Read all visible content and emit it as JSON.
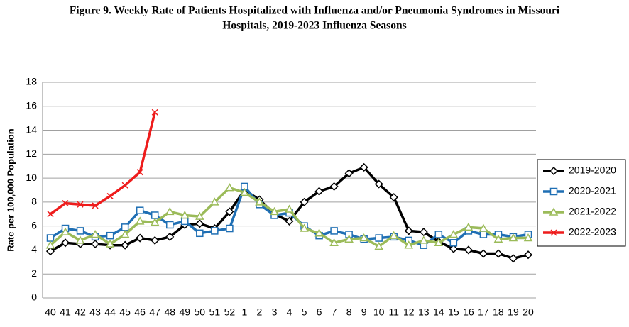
{
  "chart_data": {
    "type": "line",
    "title": [
      "Figure 9.  Weekly Rate of Patients Hospitalized with Influenza and/or Pneumonia Syndromes in Missouri",
      "Hospitals, 2019-2023 Influenza Seasons"
    ],
    "y_label": "Rate per 100,000 Population",
    "categories": [
      "40",
      "41",
      "42",
      "43",
      "44",
      "45",
      "46",
      "47",
      "48",
      "49",
      "50",
      "51",
      "52",
      "1",
      "2",
      "3",
      "4",
      "5",
      "6",
      "7",
      "8",
      "9",
      "10",
      "11",
      "12",
      "13",
      "14",
      "15",
      "16",
      "17",
      "18",
      "19",
      "20"
    ],
    "ylim": [
      0,
      18
    ],
    "yticks": [
      0,
      2,
      4,
      6,
      8,
      10,
      12,
      14,
      16,
      18
    ],
    "grid": true,
    "legend": "right",
    "series": [
      {
        "name": "2019-2020",
        "color": "#000000",
        "marker": "diamond",
        "values": [
          3.9,
          4.6,
          4.5,
          4.5,
          4.4,
          4.4,
          5.0,
          4.8,
          5.1,
          6.1,
          6.2,
          5.8,
          7.2,
          9.0,
          8.2,
          7.0,
          6.4,
          8.0,
          8.9,
          9.3,
          10.4,
          10.9,
          9.5,
          8.4,
          5.6,
          5.5,
          4.7,
          4.1,
          4.0,
          3.7,
          3.7,
          3.3,
          3.6
        ]
      },
      {
        "name": "2020-2021",
        "color": "#1f6fb4",
        "marker": "square",
        "values": [
          5.0,
          5.8,
          5.6,
          5.1,
          5.2,
          5.9,
          7.3,
          6.9,
          6.1,
          6.4,
          5.4,
          5.6,
          5.8,
          9.3,
          7.8,
          6.9,
          7.1,
          6.0,
          5.2,
          5.6,
          5.3,
          4.9,
          5.0,
          5.1,
          4.8,
          4.4,
          5.3,
          4.6,
          5.6,
          5.3,
          5.3,
          5.1,
          5.3
        ]
      },
      {
        "name": "2021-2022",
        "color": "#9bbb59",
        "marker": "triangle",
        "values": [
          4.4,
          5.5,
          4.8,
          5.3,
          4.5,
          5.3,
          6.4,
          6.3,
          7.2,
          6.9,
          6.8,
          8.0,
          9.2,
          8.8,
          8.0,
          7.2,
          7.4,
          5.8,
          5.4,
          4.6,
          4.9,
          5.0,
          4.3,
          5.2,
          4.4,
          4.8,
          4.6,
          5.3,
          5.9,
          5.8,
          4.9,
          5.0,
          5.0
        ]
      },
      {
        "name": "2022-2023",
        "color": "#ee1c1c",
        "marker": "x",
        "values": [
          7.0,
          7.9,
          7.8,
          7.7,
          8.5,
          9.4,
          10.5,
          15.5,
          null,
          null,
          null,
          null,
          null,
          null,
          null,
          null,
          null,
          null,
          null,
          null,
          null,
          null,
          null,
          null,
          null,
          null,
          null,
          null,
          null,
          null,
          null,
          null,
          null
        ]
      }
    ]
  }
}
